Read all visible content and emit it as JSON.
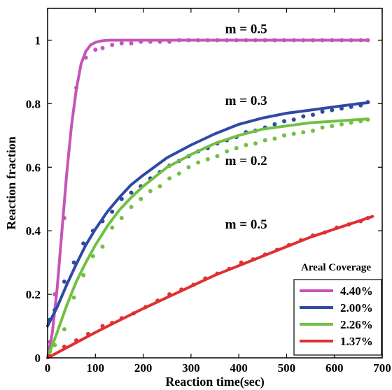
{
  "chart_data": {
    "type": "line",
    "title": "",
    "xlabel": "Reaction time(sec)",
    "ylabel": "Reaction fraction",
    "xlim": [
      0,
      700
    ],
    "ylim": [
      0,
      1.1
    ],
    "xticks": [
      0,
      100,
      200,
      300,
      400,
      500,
      600,
      700
    ],
    "yticks": [
      0,
      0.2,
      0.4,
      0.6,
      0.8,
      1
    ],
    "ytick_labels": [
      "0",
      "0.2",
      "0.4",
      "0.6",
      "0.8",
      "1"
    ],
    "grid": false,
    "legend": {
      "title": "Areal Coverage",
      "placement": "bottom-right"
    },
    "annotations": [
      {
        "text": "m = 0.5",
        "x": 430,
        "y": 1.035
      },
      {
        "text": "m = 0.3",
        "x": 430,
        "y": 0.81
      },
      {
        "text": "m = 0.2",
        "x": 430,
        "y": 0.62
      },
      {
        "text": "m = 0.5",
        "x": 430,
        "y": 0.42
      }
    ],
    "series": [
      {
        "name": "4.40%",
        "color": "#c455b8",
        "fit_x": [
          0,
          10,
          20,
          30,
          40,
          50,
          60,
          70,
          80,
          90,
          100,
          110,
          120,
          130,
          140,
          150,
          175,
          200,
          250,
          300,
          350,
          400,
          450,
          500,
          550,
          600,
          650,
          670
        ],
        "fit_y": [
          0,
          0.08,
          0.22,
          0.4,
          0.58,
          0.73,
          0.845,
          0.925,
          0.965,
          0.985,
          0.993,
          0.997,
          0.999,
          1,
          1,
          1,
          1,
          1,
          1,
          1,
          1,
          1,
          1,
          1,
          1,
          1,
          1,
          1
        ],
        "points_x": [
          5,
          15,
          35,
          60,
          80,
          100,
          115,
          135,
          155,
          175,
          195,
          215,
          235,
          255,
          275,
          295,
          315,
          335,
          355,
          375,
          395,
          415,
          435,
          455,
          475,
          495,
          515,
          535,
          555,
          575,
          595,
          615,
          635,
          655,
          670
        ],
        "points_y": [
          0.05,
          0.2,
          0.44,
          0.85,
          0.945,
          0.97,
          0.975,
          0.985,
          0.99,
          0.99,
          0.995,
          0.995,
          0.995,
          0.995,
          1,
          1,
          1,
          1,
          1,
          1,
          1,
          1,
          1,
          1,
          1,
          1,
          1,
          1,
          1,
          1,
          1,
          1,
          1,
          1,
          1
        ]
      },
      {
        "name": "2.00%",
        "color": "#2f4aa5",
        "fit_x": [
          0,
          10,
          20,
          40,
          60,
          80,
          100,
          125,
          150,
          175,
          200,
          250,
          300,
          350,
          400,
          450,
          500,
          550,
          600,
          650,
          670
        ],
        "fit_y": [
          0.1,
          0.13,
          0.16,
          0.23,
          0.295,
          0.355,
          0.405,
          0.46,
          0.505,
          0.545,
          0.575,
          0.63,
          0.67,
          0.705,
          0.735,
          0.755,
          0.77,
          0.78,
          0.79,
          0.8,
          0.803
        ],
        "points_x": [
          5,
          15,
          35,
          55,
          75,
          95,
          115,
          135,
          155,
          175,
          195,
          215,
          235,
          255,
          275,
          295,
          315,
          335,
          355,
          375,
          395,
          415,
          435,
          455,
          475,
          495,
          515,
          535,
          555,
          575,
          595,
          615,
          635,
          655,
          670
        ],
        "points_y": [
          0.12,
          0.15,
          0.24,
          0.3,
          0.36,
          0.4,
          0.43,
          0.46,
          0.5,
          0.52,
          0.54,
          0.565,
          0.585,
          0.605,
          0.62,
          0.635,
          0.65,
          0.66,
          0.675,
          0.685,
          0.695,
          0.71,
          0.715,
          0.725,
          0.735,
          0.745,
          0.75,
          0.76,
          0.765,
          0.775,
          0.78,
          0.785,
          0.79,
          0.795,
          0.805
        ]
      },
      {
        "name": "2.26%",
        "color": "#72c043",
        "fit_x": [
          0,
          10,
          20,
          40,
          60,
          80,
          100,
          125,
          150,
          175,
          200,
          250,
          300,
          350,
          400,
          450,
          500,
          550,
          600,
          650,
          670
        ],
        "fit_y": [
          0,
          0.04,
          0.08,
          0.165,
          0.24,
          0.3,
          0.355,
          0.415,
          0.465,
          0.505,
          0.54,
          0.6,
          0.64,
          0.675,
          0.7,
          0.72,
          0.73,
          0.74,
          0.745,
          0.75,
          0.752
        ],
        "points_x": [
          5,
          15,
          35,
          55,
          75,
          95,
          115,
          135,
          155,
          175,
          195,
          215,
          235,
          255,
          275,
          295,
          315,
          335,
          355,
          375,
          395,
          415,
          435,
          455,
          475,
          495,
          515,
          535,
          555,
          575,
          595,
          615,
          635,
          655,
          670
        ],
        "points_y": [
          0.02,
          0.04,
          0.09,
          0.19,
          0.26,
          0.32,
          0.35,
          0.41,
          0.44,
          0.475,
          0.5,
          0.525,
          0.54,
          0.565,
          0.58,
          0.6,
          0.615,
          0.625,
          0.635,
          0.65,
          0.66,
          0.67,
          0.675,
          0.685,
          0.69,
          0.7,
          0.705,
          0.71,
          0.715,
          0.725,
          0.73,
          0.735,
          0.74,
          0.745,
          0.75
        ]
      },
      {
        "name": "1.37%",
        "color": "#e03030",
        "fit_x": [
          0,
          25,
          50,
          100,
          150,
          200,
          250,
          300,
          350,
          400,
          450,
          500,
          550,
          600,
          650,
          680
        ],
        "fit_y": [
          0,
          0.02,
          0.04,
          0.08,
          0.118,
          0.155,
          0.19,
          0.225,
          0.26,
          0.29,
          0.32,
          0.35,
          0.38,
          0.405,
          0.43,
          0.445
        ],
        "points_x": [
          5,
          35,
          60,
          85,
          115,
          135,
          155,
          180,
          205,
          230,
          255,
          280,
          305,
          330,
          355,
          380,
          405,
          430,
          455,
          480,
          505,
          530,
          555,
          580,
          605,
          630,
          655,
          670
        ],
        "points_y": [
          0.005,
          0.035,
          0.055,
          0.075,
          0.1,
          0.11,
          0.125,
          0.14,
          0.16,
          0.18,
          0.2,
          0.215,
          0.23,
          0.25,
          0.265,
          0.28,
          0.3,
          0.31,
          0.325,
          0.34,
          0.355,
          0.37,
          0.385,
          0.395,
          0.41,
          0.42,
          0.43,
          0.44
        ]
      }
    ]
  }
}
